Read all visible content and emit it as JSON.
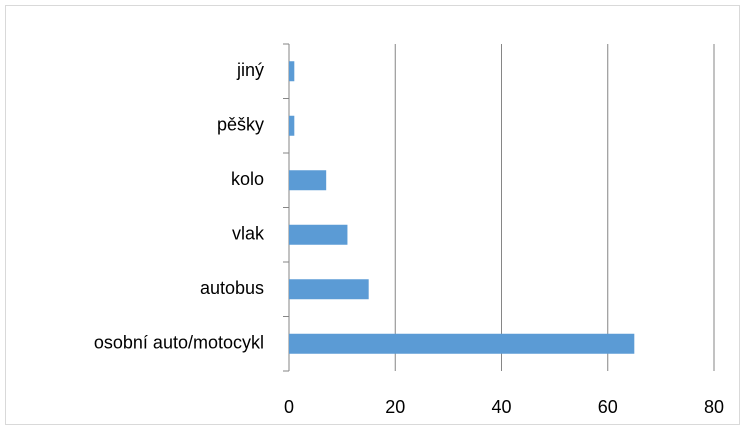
{
  "chart_data": {
    "type": "barh",
    "categories": [
      "osobní auto/motocykl",
      "autobus",
      "vlak",
      "kolo",
      "pěšky",
      "jiný"
    ],
    "values": [
      65,
      15,
      11,
      7,
      1,
      1
    ],
    "color": "#5b9bd5",
    "xlim": [
      0,
      80
    ],
    "xticks": [
      0,
      20,
      40,
      60,
      80
    ],
    "grid": true
  }
}
